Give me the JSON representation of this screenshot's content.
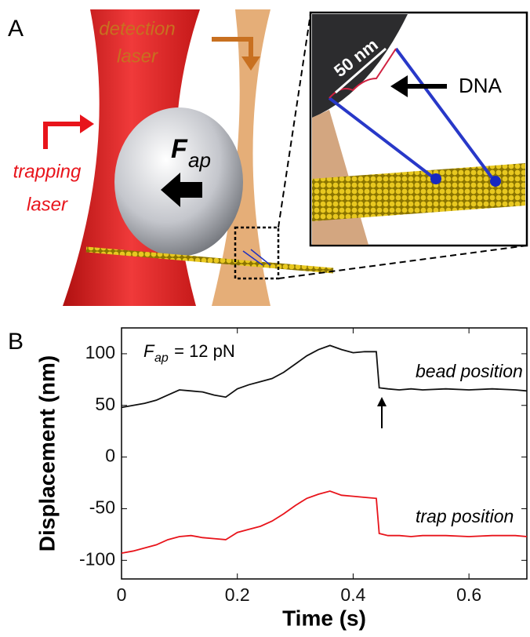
{
  "panel_labels": [
    "A",
    "B"
  ],
  "illustration": {
    "detection_laser": [
      "detection",
      "laser"
    ],
    "trapping_laser": [
      "trapping",
      "laser"
    ],
    "force_symbol": "F",
    "force_subscript": "ap",
    "scale": "50 nm",
    "dna": "DNA"
  },
  "chart_data": {
    "type": "line",
    "annotation": {
      "symbol": "F",
      "subscript": "ap",
      "text": " = 12 pN"
    },
    "x_label": "Time (s)",
    "y_label": "Displacement (nm)",
    "x": [
      0,
      0.02,
      0.04,
      0.06,
      0.08,
      0.1,
      0.12,
      0.14,
      0.16,
      0.18,
      0.2,
      0.22,
      0.24,
      0.26,
      0.28,
      0.3,
      0.32,
      0.34,
      0.36,
      0.38,
      0.4,
      0.42,
      0.44,
      0.445,
      0.46,
      0.48,
      0.5,
      0.52,
      0.56,
      0.6,
      0.64,
      0.68,
      0.7
    ],
    "series": [
      {
        "name": "bead position",
        "color": "#111111",
        "values": [
          48,
          50,
          52,
          55,
          60,
          65,
          64,
          63,
          60,
          58,
          66,
          70,
          73,
          76,
          82,
          90,
          98,
          104,
          108,
          104,
          101,
          102,
          102,
          67,
          66,
          65,
          66,
          65,
          66,
          65,
          66,
          65,
          64
        ]
      },
      {
        "name": "trap position",
        "color": "#e8141b",
        "values": [
          -93,
          -91,
          -88,
          -85,
          -80,
          -77,
          -76,
          -78,
          -79,
          -80,
          -73,
          -70,
          -67,
          -62,
          -55,
          -47,
          -40,
          -36,
          -33,
          -37,
          -38,
          -39,
          -40,
          -74,
          -76,
          -76,
          -77,
          -76,
          -76,
          -77,
          -76,
          -76,
          -77
        ]
      }
    ],
    "xlim": [
      0,
      0.7
    ],
    "xticks": [
      0,
      0.2,
      0.4,
      0.6
    ],
    "ylim": [
      -118,
      125
    ],
    "yticks": [
      -100,
      -50,
      0,
      50,
      100
    ]
  }
}
